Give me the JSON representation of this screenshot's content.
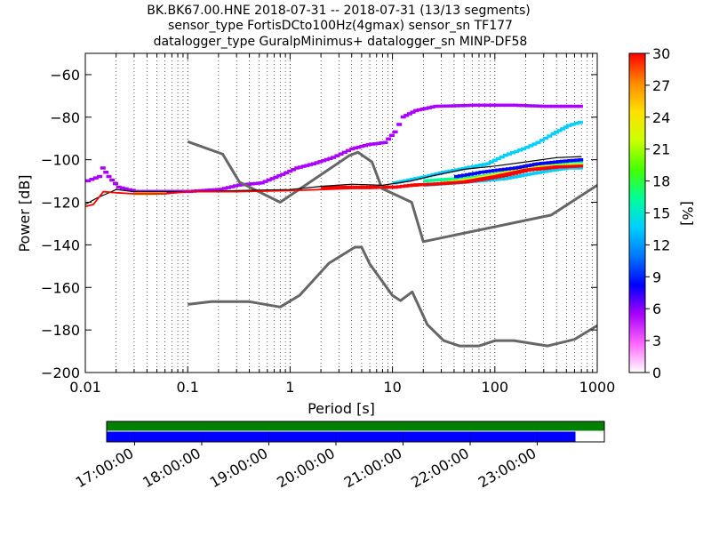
{
  "chart_data": [
    {
      "type": "heatmap",
      "title_lines": [
        "BK.BK67.00.HNE   2018-07-31 -- 2018-07-31  (13/13 segments)",
        "sensor_type FortisDCto100Hz(4gmax) sensor_sn TF177",
        "datalogger_type GuralpMinimus+ datalogger_sn MINP-DF58"
      ],
      "xlabel": "Period [s]",
      "ylabel": "Power [dB]",
      "x_scale": "log",
      "xlim": [
        0.01,
        1000
      ],
      "ylim": [
        -200,
        -50
      ],
      "x_ticks": [
        0.01,
        0.1,
        1,
        10,
        100,
        1000
      ],
      "x_tick_labels": [
        "0.01",
        "0.1",
        "1",
        "10",
        "100",
        "1000"
      ],
      "y_ticks": [
        -200,
        -180,
        -160,
        -140,
        -120,
        -100,
        -80,
        -60
      ],
      "y_tick_labels": [
        "−200",
        "−180",
        "−160",
        "−140",
        "−120",
        "−100",
        "−80",
        "−60"
      ],
      "grid": "dotted vertical at each log subdivision",
      "colorbar": {
        "label": "[%]",
        "range": [
          0,
          30
        ],
        "ticks": [
          0,
          3,
          6,
          9,
          12,
          15,
          18,
          21,
          24,
          27,
          30
        ],
        "tick_labels": [
          "0",
          "3",
          "6",
          "9",
          "12",
          "15",
          "18",
          "21",
          "24",
          "27",
          "30"
        ],
        "colormap_stops": [
          "#ffffff",
          "#ff66ff",
          "#aa00ff",
          "#0000ff",
          "#0077ff",
          "#00cfff",
          "#00ff99",
          "#44ff00",
          "#ccff00",
          "#ffe000",
          "#ff8800",
          "#ff0000"
        ]
      },
      "noise_models": {
        "nhnm": {
          "x": [
            0.1,
            0.22,
            0.32,
            0.8,
            3.8,
            4.6,
            6.3,
            7.9,
            15.4,
            20,
            354.8,
            1000
          ],
          "y": [
            -91.5,
            -97.4,
            -110.5,
            -120,
            -98,
            -96.5,
            -101,
            -113.5,
            -120,
            -138.5,
            -126,
            -112
          ]
        },
        "nlnm": {
          "x": [
            0.1,
            0.17,
            0.4,
            0.8,
            1.24,
            2.4,
            4.3,
            5.0,
            6.0,
            10.0,
            12.0,
            15.6,
            21.9,
            31.6,
            45,
            70,
            101,
            154,
            328,
            600,
            1000
          ],
          "y": [
            -168,
            -166.7,
            -166.7,
            -169.2,
            -163.7,
            -148.6,
            -141.1,
            -141.1,
            -149,
            -163.8,
            -166.2,
            -162.1,
            -177.5,
            -185,
            -187.5,
            -187.5,
            -185,
            -185,
            -187.5,
            -184.4,
            -178
          ]
        },
        "color": "#666666"
      },
      "series": [
        {
          "name": "mean",
          "color": "#000000",
          "x": [
            0.01,
            0.013,
            0.02,
            0.03,
            0.05,
            0.1,
            0.3,
            1,
            2,
            4,
            8,
            15,
            25,
            50,
            100,
            200,
            400,
            700
          ],
          "y": [
            -121,
            -118,
            -114,
            -115,
            -115,
            -115,
            -114.5,
            -114,
            -112.5,
            -111.5,
            -112,
            -110,
            -107.5,
            -104.5,
            -103,
            -101,
            -99,
            -98.5
          ]
        },
        {
          "name": "mode",
          "color": "#ff0000",
          "x": [
            0.01,
            0.012,
            0.015,
            0.02,
            0.03,
            0.06,
            0.1,
            0.3,
            1,
            2,
            4,
            6,
            10,
            15,
            25,
            50,
            100,
            200,
            400,
            700
          ],
          "y": [
            -122,
            -121,
            -115,
            -115.5,
            -116,
            -116,
            -115,
            -115,
            -114.5,
            -114,
            -113.5,
            -113.5,
            -113,
            -112.5,
            -111.5,
            -110,
            -107.5,
            -104.5,
            -103,
            -103
          ]
        }
      ],
      "pdf_bands": [
        {
          "x": [
            0.01,
            0.013,
            0.014,
            0.016,
            0.02,
            0.03,
            0.06,
            0.1,
            0.2,
            0.3,
            0.5,
            0.8,
            1.1,
            1.6,
            2.5,
            3.8,
            5.5,
            8,
            10,
            12,
            16,
            25,
            60,
            150,
            300,
            500,
            700
          ],
          "y": [
            -110,
            -108,
            -104,
            -108,
            -113,
            -115,
            -115,
            -115,
            -114,
            -112,
            -111,
            -107,
            -104,
            -102,
            -99,
            -95,
            -93,
            -92,
            -87,
            -80,
            -77,
            -75,
            -74.5,
            -74.5,
            -75,
            -75,
            -75
          ],
          "p": 6
        },
        {
          "x": [
            10,
            20,
            30,
            50,
            80,
            120,
            180,
            250,
            350,
            500,
            700
          ],
          "y": [
            -111,
            -108,
            -106,
            -104,
            -102,
            -98,
            -95,
            -92,
            -88,
            -84,
            -82
          ],
          "p": 14
        },
        {
          "x": [
            20,
            40,
            70,
            120,
            200,
            350,
            500,
            700
          ],
          "y": [
            -110,
            -109,
            -108,
            -106,
            -104,
            -102,
            -101,
            -101
          ],
          "p": 17
        },
        {
          "x": [
            20,
            40,
            70,
            120,
            200,
            350,
            500,
            700
          ],
          "y": [
            -112,
            -111,
            -110,
            -109,
            -107,
            -105,
            -104,
            -104
          ],
          "p": 13
        },
        {
          "x": [
            30,
            60,
            100,
            150,
            250,
            400,
            600,
            700
          ],
          "y": [
            -111,
            -109,
            -107,
            -105,
            -103.5,
            -103,
            -102.5,
            -102.5
          ],
          "p": 22
        },
        {
          "x": [
            2,
            4,
            6,
            10,
            15,
            25,
            50,
            80,
            120,
            200,
            400,
            700
          ],
          "y": [
            -113,
            -113,
            -113,
            -113,
            -112,
            -111.5,
            -110.5,
            -109,
            -107.5,
            -105,
            -103.5,
            -103
          ],
          "p": 30
        },
        {
          "x": [
            40,
            70,
            100,
            150,
            250,
            400,
            700
          ],
          "y": [
            -108,
            -106,
            -105,
            -104,
            -102,
            -101,
            -100
          ],
          "p": 8
        },
        {
          "x": [
            0.03,
            0.04,
            0.06
          ],
          "y": [
            -116,
            -116,
            -115.5
          ],
          "p": 24
        }
      ]
    },
    {
      "type": "timeline",
      "time_ticks": [
        "17:00:00",
        "18:00:00",
        "19:00:00",
        "20:00:00",
        "21:00:00",
        "22:00:00",
        "23:00:00"
      ],
      "time_range": [
        "16:35:00",
        "24:00:00"
      ],
      "tick_times": [
        17,
        18,
        19,
        20,
        21,
        22,
        23
      ],
      "coverage_end": 23.57,
      "bar_colors": {
        "top": "#008000",
        "bottom": "#0000ff"
      },
      "segment_boundaries": [
        17.0,
        18.0,
        19.0,
        20.0,
        21.0,
        22.0,
        23.0
      ]
    }
  ]
}
